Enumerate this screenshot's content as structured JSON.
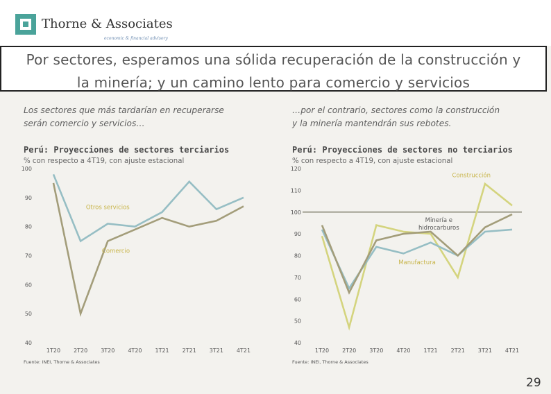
{
  "header": {
    "logo_name": "Thorne & Associates",
    "logo_tagline": "economic & financial advisory",
    "title_line1": "Por sectores, esperamos una sólida recuperación de la construcción y",
    "title_line2": "la minería; y un camino lento para comercio y servicios"
  },
  "left": {
    "intro_line1": "Los sectores que más tardarían en recuperarse",
    "intro_line2": "serán comercio y servicios…"
  },
  "right": {
    "intro_line1": "…por el contrario, sectores como la construcción",
    "intro_line2": "y la minería mantendrán sus rebotes."
  },
  "page_number": "29",
  "colors": {
    "blue_series": "#96bec4",
    "olive_series": "#a39d7a",
    "yellow_series": "#d4d47e",
    "label_yellow": "#c8b54a",
    "reference_line": "#6b6a55",
    "logo_teal": "#4aa39a"
  },
  "chart_data": [
    {
      "type": "line",
      "title": "Perú: Proyecciones de sectores terciarios",
      "subtitle": "% con respecto a 4T19, con ajuste estacional",
      "source": "Fuente: INEI, Thorne & Associates",
      "categories": [
        "1T20",
        "2T20",
        "3T20",
        "4T20",
        "1T21",
        "2T21",
        "3T21",
        "4T21"
      ],
      "ylim": [
        40,
        100
      ],
      "yticks": [
        40,
        50,
        60,
        70,
        80,
        90,
        100
      ],
      "grid": false,
      "series": [
        {
          "name": "Otros servicios",
          "color": "#96bec4",
          "values": [
            98,
            75,
            81,
            80,
            85,
            95.5,
            86,
            90
          ]
        },
        {
          "name": "Comercio",
          "color": "#a39d7a",
          "values": [
            95,
            50,
            75,
            79,
            83,
            80,
            82,
            87
          ]
        }
      ],
      "labels": [
        {
          "text": "Otros servicios",
          "at": [
            2,
            86
          ],
          "color": "#c8b54a"
        },
        {
          "text": "Comercio",
          "at": [
            2.3,
            71
          ],
          "color": "#c8b54a"
        }
      ]
    },
    {
      "type": "line",
      "title": "Perú: Proyecciones de sectores no terciarios",
      "subtitle": "% con respecto a 4T19, con ajuste estacional",
      "source": "Fuente: INEI, Thorne & Associates",
      "categories": [
        "1T20",
        "2T20",
        "3T20",
        "4T20",
        "1T21",
        "2T21",
        "3T21",
        "4T21"
      ],
      "ylim": [
        40,
        120
      ],
      "yticks": [
        40,
        50,
        60,
        70,
        80,
        90,
        100,
        110,
        120
      ],
      "reference_line": 100,
      "grid": false,
      "series": [
        {
          "name": "Construcción",
          "color": "#d4d47e",
          "values": [
            89,
            47,
            94,
            91,
            90,
            70,
            113,
            103
          ]
        },
        {
          "name": "Manufactura",
          "color": "#96bec4",
          "values": [
            92,
            65,
            84,
            81,
            86,
            80,
            91,
            92
          ]
        },
        {
          "name": "Minería e hidrocarburos",
          "color": "#a39d7a",
          "values": [
            94,
            63,
            87,
            90,
            91,
            80,
            93,
            99
          ]
        }
      ],
      "labels": [
        {
          "text": "Construcción",
          "at": [
            5.5,
            116
          ],
          "color": "#c8b54a"
        },
        {
          "text": "Minería e",
          "at": [
            4.3,
            95.5
          ],
          "color": "#5a5a5a"
        },
        {
          "text": "hidrocarburos",
          "at": [
            4.3,
            92
          ],
          "color": "#5a5a5a"
        },
        {
          "text": "Manufactura",
          "at": [
            3.5,
            76
          ],
          "color": "#c8b54a"
        }
      ]
    }
  ]
}
